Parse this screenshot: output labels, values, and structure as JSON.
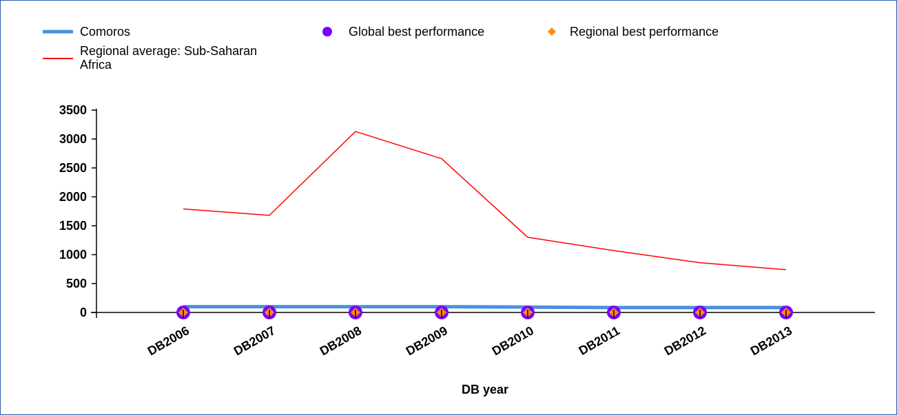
{
  "chart_data": {
    "type": "line",
    "categories": [
      "DB2006",
      "DB2007",
      "DB2008",
      "DB2009",
      "DB2010",
      "DB2011",
      "DB2012",
      "DB2013"
    ],
    "xlabel": "DB year",
    "ylabel": "",
    "ylim": [
      0,
      3500
    ],
    "yticks": [
      0,
      500,
      1000,
      1500,
      2000,
      2500,
      3000,
      3500
    ],
    "grid": false,
    "legend_position": "top",
    "series": [
      {
        "name": "Comoros",
        "style": "line",
        "color": "#4a90e2",
        "values": [
          100,
          100,
          100,
          100,
          93,
          85,
          85,
          85
        ]
      },
      {
        "name": "Regional average: Sub-Saharan Africa",
        "style": "line",
        "color": "#ff0000",
        "values": [
          1790,
          1680,
          3130,
          2660,
          1300,
          1070,
          860,
          740
        ]
      },
      {
        "name": "Global best performance",
        "style": "marker-circle",
        "color": "#7b00ff",
        "values": [
          0,
          0,
          0,
          0,
          0,
          0,
          0,
          0
        ]
      },
      {
        "name": "Regional best performance",
        "style": "marker-diamond",
        "color": "#ff8c00",
        "values": [
          0,
          0,
          0,
          0,
          0,
          0,
          0,
          0
        ]
      }
    ]
  }
}
